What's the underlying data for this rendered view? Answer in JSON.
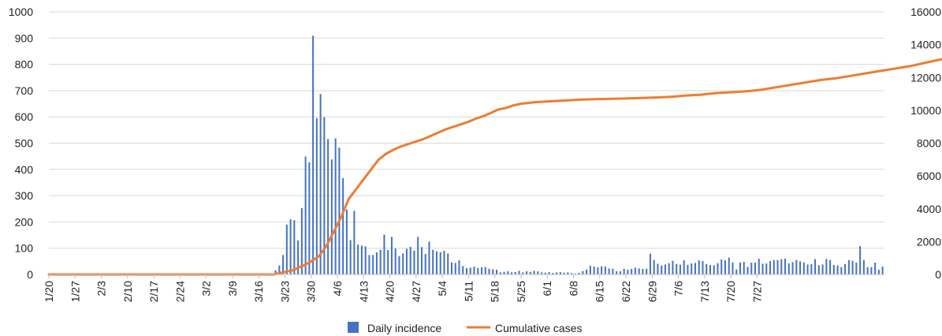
{
  "chart_data": {
    "type": "bar+line",
    "title": "",
    "xlabel": "",
    "ylabel_left": "",
    "ylabel_right": "",
    "ylim_left": [
      0,
      1000
    ],
    "ylim_right": [
      0,
      16000
    ],
    "yticks_left": [
      "0",
      "100",
      "200",
      "300",
      "400",
      "500",
      "600",
      "700",
      "800",
      "900",
      "1000"
    ],
    "yticks_right": [
      "0",
      "2000",
      "4000",
      "6000",
      "8000",
      "10000",
      "12000",
      "14000",
      "16000"
    ],
    "x_tick_labels": [
      "1/20",
      "1/27",
      "2/3",
      "2/10",
      "2/17",
      "2/24",
      "3/2",
      "3/9",
      "3/16",
      "3/23",
      "3/30",
      "4/6",
      "4/13",
      "4/20",
      "4/27",
      "5/4",
      "5/11",
      "5/18",
      "5/25",
      "6/1",
      "6/8",
      "6/15",
      "6/22",
      "6/29",
      "7/6",
      "7/13",
      "7/20",
      "7/27"
    ],
    "x_start_date": "1/20",
    "grid": true,
    "legend_position": "bottom",
    "colors": {
      "bars": "#4472C4",
      "line": "#ED7D31",
      "grid": "#D9D9D9"
    },
    "series": [
      {
        "name": "Daily incidence",
        "type": "bar",
        "axis": "left",
        "values": [
          0,
          0,
          0,
          0,
          0,
          0,
          0,
          0,
          0,
          0,
          0,
          0,
          0,
          0,
          0,
          0,
          0,
          0,
          0,
          0,
          0,
          0,
          0,
          0,
          0,
          0,
          0,
          0,
          0,
          0,
          0,
          0,
          0,
          0,
          0,
          0,
          0,
          0,
          0,
          0,
          0,
          0,
          0,
          0,
          0,
          0,
          0,
          0,
          0,
          0,
          0,
          0,
          0,
          0,
          0,
          0,
          0,
          0,
          0,
          0,
          16,
          34,
          74,
          190,
          210,
          207,
          130,
          253,
          449,
          427,
          909,
          595,
          687,
          599,
          516,
          438,
          518,
          483,
          367,
          248,
          131,
          242,
          114,
          110,
          107,
          74,
          74,
          84,
          94,
          152,
          93,
          143,
          99,
          70,
          80,
          98,
          105,
          91,
          143,
          104,
          78,
          125,
          94,
          88,
          85,
          90,
          80,
          46,
          44,
          54,
          32,
          24,
          26,
          30,
          25,
          27,
          28,
          22,
          20,
          18,
          8,
          10,
          12,
          8,
          9,
          14,
          8,
          12,
          10,
          14,
          12,
          8,
          7,
          9,
          6,
          8,
          9,
          7,
          8,
          5,
          3,
          6,
          13,
          19,
          33,
          30,
          27,
          31,
          30,
          23,
          22,
          12,
          12,
          22,
          18,
          21,
          26,
          23,
          21,
          22,
          79,
          55,
          41,
          34,
          38,
          43,
          52,
          40,
          37,
          54,
          37,
          42,
          44,
          54,
          51,
          40,
          36,
          35,
          43,
          57,
          54,
          64,
          46,
          19,
          46,
          48,
          29,
          45,
          45,
          60,
          41,
          42,
          51,
          55,
          55,
          58,
          60,
          42,
          47,
          55,
          50,
          46,
          38,
          39,
          58,
          35,
          38,
          59,
          55,
          36,
          34,
          28,
          40,
          55,
          52,
          45,
          108,
          55,
          28,
          28,
          45,
          18,
          30
        ]
      },
      {
        "name": "Cumulative cases",
        "type": "line",
        "axis": "right",
        "points": [
          [
            0,
            0
          ],
          [
            30,
            0
          ],
          [
            60,
            0
          ],
          [
            62,
            100
          ],
          [
            65,
            250
          ],
          [
            68,
            550
          ],
          [
            70,
            800
          ],
          [
            72,
            1100
          ],
          [
            74,
            1700
          ],
          [
            76,
            2600
          ],
          [
            78,
            3500
          ],
          [
            80,
            4600
          ],
          [
            82,
            5200
          ],
          [
            84,
            5800
          ],
          [
            86,
            6400
          ],
          [
            88,
            7000
          ],
          [
            90,
            7350
          ],
          [
            92,
            7600
          ],
          [
            94,
            7800
          ],
          [
            96,
            7950
          ],
          [
            98,
            8100
          ],
          [
            100,
            8250
          ],
          [
            102,
            8450
          ],
          [
            104,
            8650
          ],
          [
            106,
            8850
          ],
          [
            108,
            9000
          ],
          [
            110,
            9150
          ],
          [
            112,
            9300
          ],
          [
            114,
            9500
          ],
          [
            116,
            9650
          ],
          [
            118,
            9850
          ],
          [
            120,
            10050
          ],
          [
            122,
            10150
          ],
          [
            124,
            10300
          ],
          [
            126,
            10400
          ],
          [
            128,
            10450
          ],
          [
            130,
            10500
          ],
          [
            134,
            10550
          ],
          [
            138,
            10600
          ],
          [
            142,
            10650
          ],
          [
            146,
            10680
          ],
          [
            150,
            10700
          ],
          [
            154,
            10720
          ],
          [
            158,
            10750
          ],
          [
            162,
            10780
          ],
          [
            166,
            10820
          ],
          [
            170,
            10900
          ],
          [
            174,
            10950
          ],
          [
            178,
            11050
          ],
          [
            182,
            11100
          ],
          [
            186,
            11150
          ],
          [
            190,
            11250
          ],
          [
            194,
            11400
          ],
          [
            198,
            11550
          ],
          [
            202,
            11700
          ],
          [
            206,
            11850
          ],
          [
            210,
            11950
          ],
          [
            214,
            12100
          ],
          [
            218,
            12250
          ],
          [
            222,
            12400
          ],
          [
            226,
            12550
          ],
          [
            230,
            12700
          ],
          [
            234,
            12900
          ],
          [
            238,
            13100
          ],
          [
            242,
            13250
          ],
          [
            246,
            13400
          ],
          [
            250,
            13550
          ],
          [
            254,
            13700
          ],
          [
            258,
            13900
          ],
          [
            262,
            14100
          ],
          [
            266,
            14250
          ],
          [
            268,
            14300
          ]
        ]
      }
    ]
  }
}
